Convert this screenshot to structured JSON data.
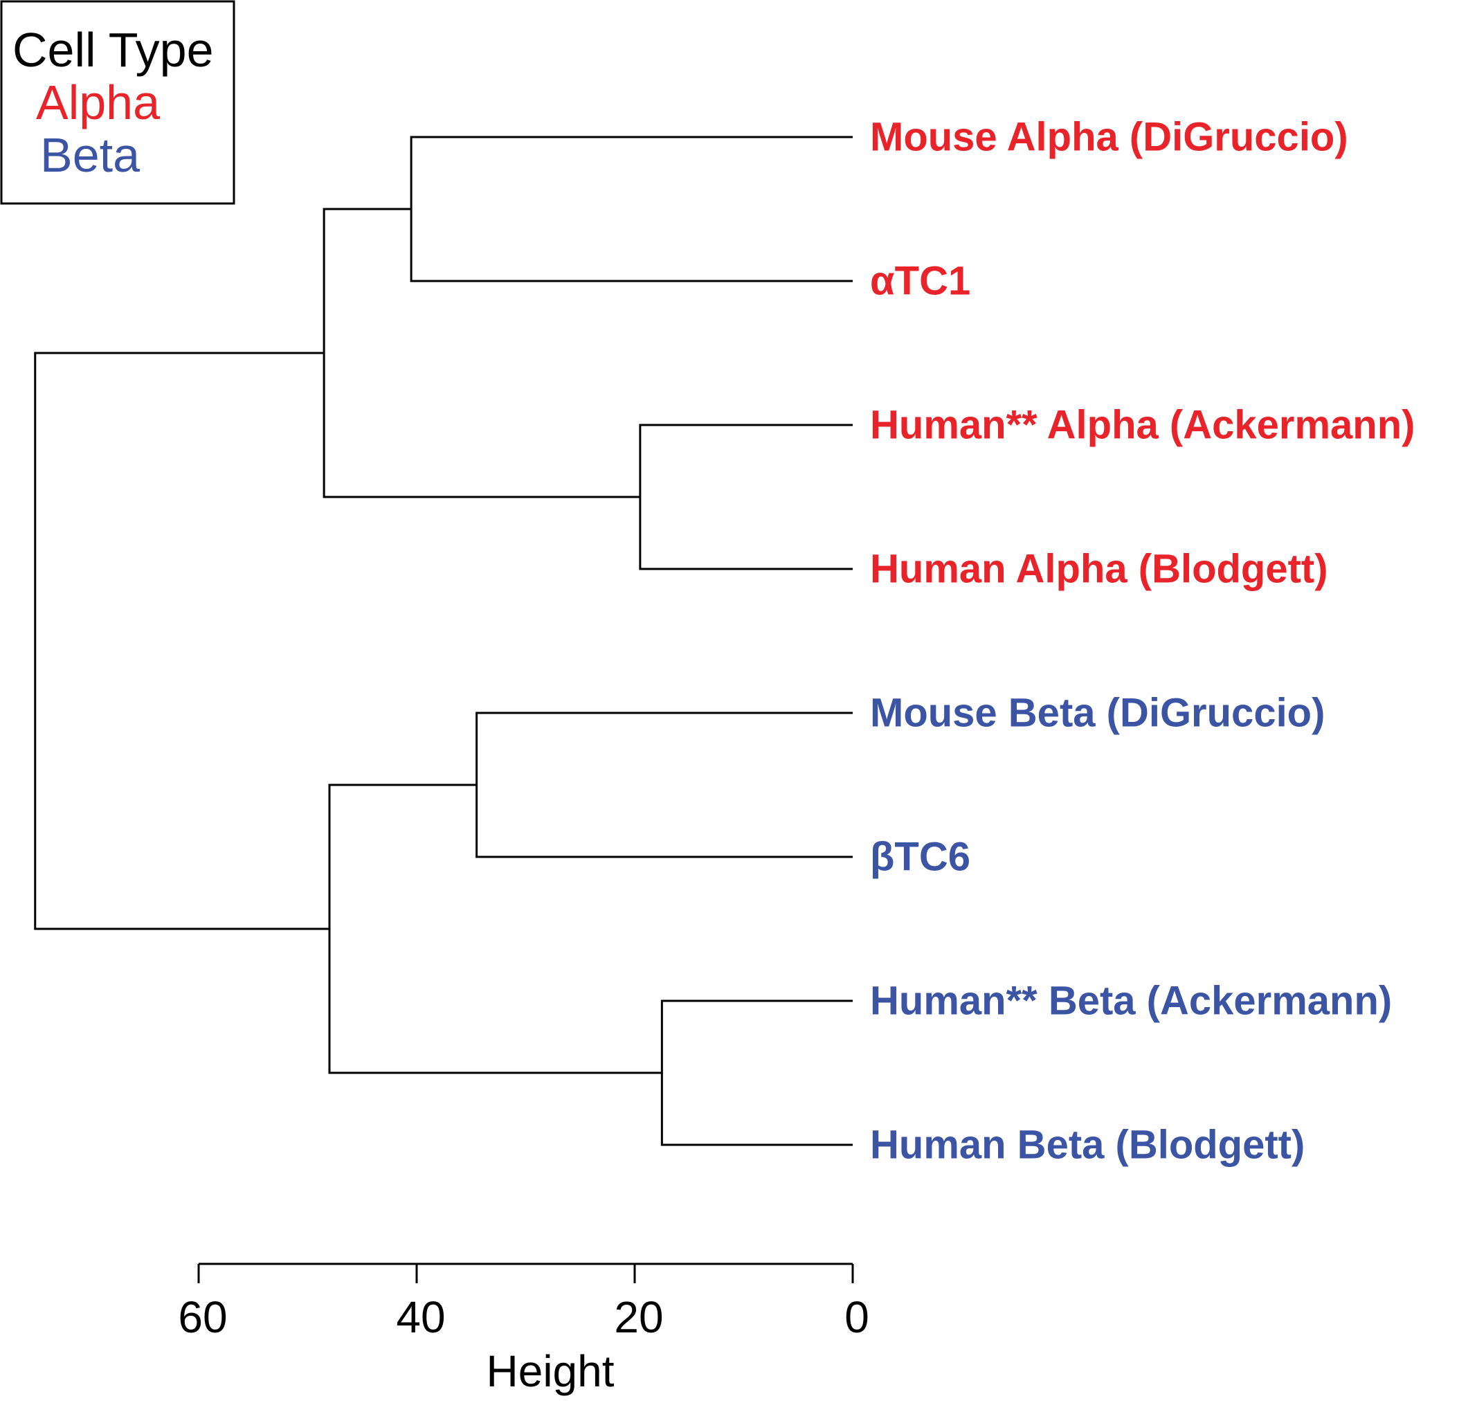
{
  "chart_data": {
    "type": "dendrogram",
    "orientation": "horizontal",
    "leaves": [
      {
        "label": "Mouse Alpha (DiGruccio)",
        "group": "Alpha"
      },
      {
        "label": "αTC1",
        "group": "Alpha"
      },
      {
        "label": "Human** Alpha (Ackermann)",
        "group": "Alpha"
      },
      {
        "label": "Human Alpha (Blodgett)",
        "group": "Alpha"
      },
      {
        "label": "Mouse Beta (DiGruccio)",
        "group": "Beta"
      },
      {
        "label": "βTC6",
        "group": "Beta"
      },
      {
        "label": "Human** Beta (Ackermann)",
        "group": "Beta"
      },
      {
        "label": "Human Beta (Blodgett)",
        "group": "Beta"
      }
    ],
    "merges": [
      {
        "left": 0,
        "right": 1,
        "height": 40.5
      },
      {
        "left": 2,
        "right": 3,
        "height": 19.5
      },
      {
        "left": 4,
        "right": 5,
        "height": 34.5
      },
      {
        "left": 6,
        "right": 7,
        "height": 17.5
      },
      {
        "left": 8,
        "right": 9,
        "height": 48.5
      },
      {
        "left": 10,
        "right": 11,
        "height": 48
      },
      {
        "left": 12,
        "right": 13,
        "height": 75
      }
    ],
    "xlabel": "Height",
    "x_ticks": [
      60,
      40,
      20,
      0
    ],
    "legend": {
      "title": "Cell Type",
      "placement": "top-left",
      "entries": [
        {
          "label": "Alpha",
          "color": "#e8232a"
        },
        {
          "label": "Beta",
          "color": "#3b54a4"
        }
      ]
    },
    "colors": {
      "Alpha": "#e8232a",
      "Beta": "#3b54a4",
      "branch": "#000000"
    }
  }
}
